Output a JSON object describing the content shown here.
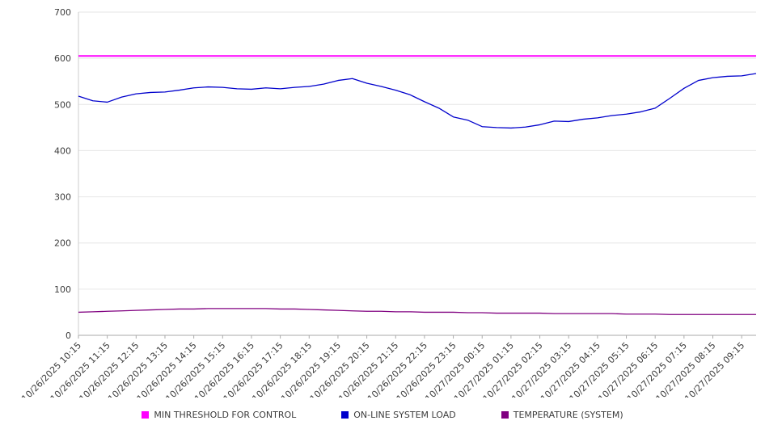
{
  "chart_data": {
    "type": "line",
    "title": "",
    "xlabel": "",
    "ylabel": "",
    "ylim": [
      0,
      700
    ],
    "y_ticks": [
      0,
      100,
      200,
      300,
      400,
      500,
      600,
      700
    ],
    "grid": "horizontal",
    "legend_position": "bottom",
    "points_per_label": 2,
    "x_labels": [
      "10/26/2025 10:15",
      "10/26/2025 11:15",
      "10/26/2025 12:15",
      "10/26/2025 13:15",
      "10/26/2025 14:15",
      "10/26/2025 15:15",
      "10/26/2025 16:15",
      "10/26/2025 17:15",
      "10/26/2025 18:15",
      "10/26/2025 19:15",
      "10/26/2025 20:15",
      "10/26/2025 21:15",
      "10/26/2025 22:15",
      "10/26/2025 23:15",
      "10/27/2025 00:15",
      "10/27/2025 01:15",
      "10/27/2025 02:15",
      "10/27/2025 03:15",
      "10/27/2025 04:15",
      "10/27/2025 05:15",
      "10/27/2025 06:15",
      "10/27/2025 07:15",
      "10/27/2025 08:15",
      "10/27/2025 09:15"
    ],
    "series": [
      {
        "name": "MIN THRESHOLD FOR CONTROL",
        "color": "#ff00ff",
        "constant": 605
      },
      {
        "name": "ON-LINE SYSTEM LOAD",
        "color": "#0000cc",
        "values": [
          518,
          508,
          505,
          516,
          523,
          526,
          527,
          531,
          536,
          538,
          537,
          534,
          533,
          536,
          534,
          537,
          539,
          544,
          552,
          556,
          546,
          539,
          531,
          521,
          506,
          492,
          473,
          466,
          452,
          450,
          449,
          451,
          456,
          464,
          463,
          468,
          471,
          476,
          479,
          484,
          492,
          513,
          535,
          552,
          558,
          561,
          562,
          567
        ]
      },
      {
        "name": "TEMPERATURE (SYSTEM)",
        "color": "#800080",
        "values": [
          50,
          51,
          52,
          53,
          54,
          55,
          56,
          57,
          57,
          58,
          58,
          58,
          58,
          58,
          57,
          57,
          56,
          55,
          54,
          53,
          52,
          52,
          51,
          51,
          50,
          50,
          50,
          49,
          49,
          48,
          48,
          48,
          48,
          47,
          47,
          47,
          47,
          47,
          46,
          46,
          46,
          45,
          45,
          45,
          45,
          45,
          45,
          45
        ]
      }
    ],
    "colors": {
      "background": "#ffffff",
      "gridline": "#e6e6e6",
      "axis": "#aaaaaa",
      "text": "#3c3c3c"
    }
  }
}
